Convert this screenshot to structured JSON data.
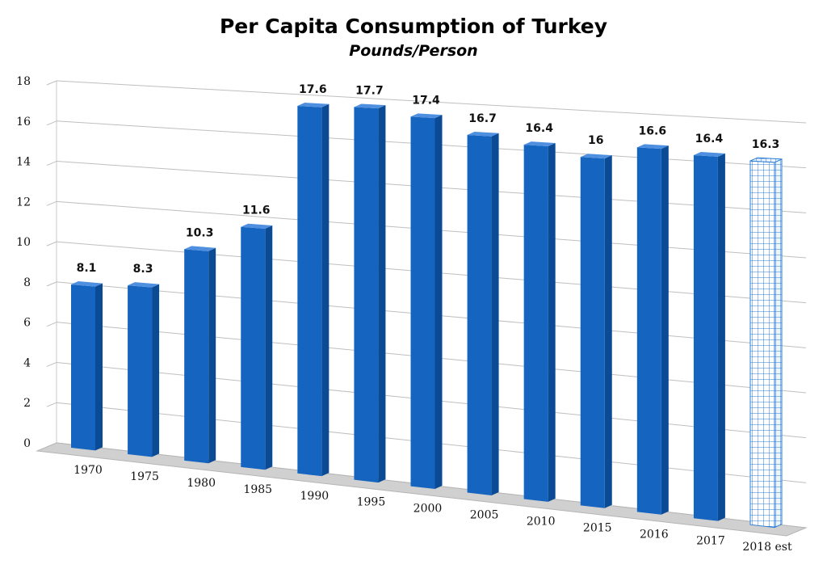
{
  "chart_data": {
    "type": "bar",
    "title": "Per Capita Consumption of Turkey",
    "subtitle": "Pounds/Person",
    "xlabel": "",
    "ylabel": "",
    "ylim": [
      0,
      18
    ],
    "yticks": [
      0,
      2,
      4,
      6,
      8,
      10,
      12,
      14,
      16,
      18
    ],
    "grid": true,
    "legend": "none",
    "categories": [
      "1970",
      "1975",
      "1980",
      "1985",
      "1990",
      "1995",
      "2000",
      "2005",
      "2010",
      "2015",
      "2016",
      "2017",
      "2018 est"
    ],
    "values": [
      8.1,
      8.3,
      10.3,
      11.6,
      17.6,
      17.7,
      17.4,
      16.7,
      16.4,
      16,
      16.6,
      16.4,
      16.3
    ],
    "data_labels": [
      "8.1",
      "8.3",
      "10.3",
      "11.6",
      "17.6",
      "17.7",
      "17.4",
      "16.7",
      "16.4",
      "16",
      "16.6",
      "16.4",
      "16.3"
    ],
    "estimate_category": "2018 est",
    "colors": {
      "bar_front": "#1565c0",
      "bar_side": "#0b4a94",
      "bar_top": "#4f8fe0",
      "estimate_fill": "#ffffff",
      "estimate_grid": "#2a7bd6",
      "gridline": "#bfbfbf",
      "floor": "#d0d0d0"
    }
  }
}
